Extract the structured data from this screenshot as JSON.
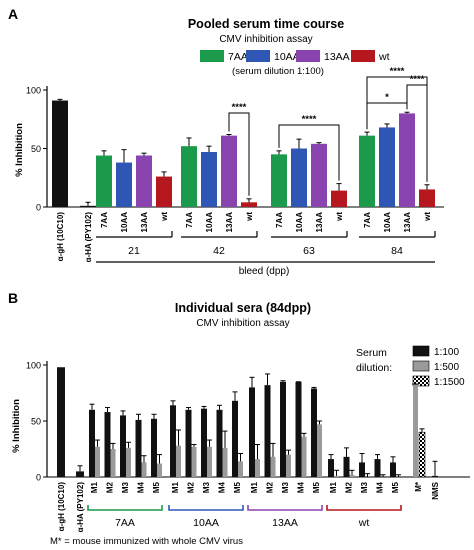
{
  "panel_a": {
    "letter": "A",
    "title": "Pooled serum time course",
    "subtitle": "CMV inhibition assay",
    "legend_note": "(serum dilution 1:100)",
    "ylabel": "% Inhibition",
    "group_label": "bleed (dpp)",
    "controls": [
      "α-gH (10C10)",
      "α-HA (PY102)"
    ],
    "significance": [
      "****",
      "****",
      "****",
      "*",
      "****"
    ]
  },
  "panel_b": {
    "letter": "B",
    "title": "Individual sera (84dpp)",
    "subtitle": "CMV inhibition assay",
    "legend_title": "Serum dilution:",
    "legend_title_line1": "Serum",
    "legend_title_line2": "dilution:",
    "ylabel": "% Inhibition",
    "footnote": "M* = mouse immunized with whole CMV virus"
  },
  "colors": {
    "7AA": "#1a9a4a",
    "10AA": "#2f56b4",
    "13AA": "#8a44b0",
    "wt": "#b5171e",
    "control": "#111111",
    "d100": "#111111",
    "d500": "#9a9a9a"
  },
  "chart_data": [
    {
      "type": "bar",
      "title": "Pooled serum time course",
      "subtitle": "CMV inhibition assay",
      "ylabel": "% Inhibition",
      "xlabel": "bleed (dpp)",
      "ylim": [
        0,
        100
      ],
      "yticks": [
        0,
        50,
        100
      ],
      "legend": [
        "7AA",
        "10AA",
        "13AA",
        "wt"
      ],
      "legend_position": "top",
      "controls": [
        {
          "label": "α-gH (10C10)",
          "value": 91,
          "err": 1
        },
        {
          "label": "α-HA (PY102)",
          "value": 1,
          "err": 3
        }
      ],
      "timepoints": [
        "21",
        "42",
        "63",
        "84"
      ],
      "series_labels": [
        "7AA",
        "10AA",
        "13AA",
        "wt"
      ],
      "values": [
        [
          44,
          38,
          44,
          26
        ],
        [
          52,
          47,
          61,
          4
        ],
        [
          45,
          50,
          54,
          14
        ],
        [
          61,
          68,
          80,
          15
        ]
      ],
      "errors": [
        [
          4,
          11,
          2,
          4
        ],
        [
          7,
          5,
          1,
          3
        ],
        [
          3,
          8,
          1,
          6
        ],
        [
          3,
          3,
          1,
          4
        ]
      ]
    },
    {
      "type": "bar",
      "title": "Individual sera (84dpp)",
      "subtitle": "CMV inhibition assay",
      "ylabel": "% Inhibition",
      "ylim": [
        0,
        100
      ],
      "yticks": [
        0,
        50,
        100
      ],
      "legend_title": "Serum dilution:",
      "legend_position": "top-right",
      "dilutions": [
        "1:100",
        "1:500",
        "1:1500"
      ],
      "controls": [
        {
          "label": "α-gH (10C10)",
          "value": 98
        },
        {
          "label": "α-HA (PY102)",
          "value": 5,
          "err": 5
        }
      ],
      "groups": [
        {
          "name": "7AA",
          "mice": [
            "M1",
            "M2",
            "M3",
            "M4",
            "M5"
          ],
          "d100": [
            60,
            58,
            55,
            51,
            52
          ],
          "d500": [
            27,
            25,
            26,
            13,
            12
          ],
          "err100": [
            5,
            4,
            4,
            5,
            4
          ],
          "err500": [
            6,
            5,
            5,
            6,
            8
          ]
        },
        {
          "name": "10AA",
          "mice": [
            "M1",
            "M2",
            "M3",
            "M4",
            "M5"
          ],
          "d100": [
            64,
            60,
            61,
            60,
            68
          ],
          "d500": [
            28,
            27,
            27,
            26,
            14
          ],
          "err100": [
            4,
            2,
            2,
            4,
            8
          ],
          "err500": [
            14,
            2,
            6,
            15,
            7
          ]
        },
        {
          "name": "13AA",
          "mice": [
            "M1",
            "M2",
            "M3",
            "M4",
            "M5"
          ],
          "d100": [
            80,
            82,
            85,
            85,
            79
          ],
          "d500": [
            16,
            18,
            20,
            36,
            47
          ],
          "err100": [
            9,
            10,
            1,
            0,
            1
          ],
          "err500": [
            13,
            12,
            4,
            3,
            3
          ]
        },
        {
          "name": "wt",
          "mice": [
            "M1",
            "M2",
            "M3",
            "M4",
            "M5"
          ],
          "d100": [
            16,
            18,
            13,
            16,
            13
          ],
          "d500": [
            1,
            2,
            0,
            0,
            0
          ],
          "err100": [
            4,
            8,
            8,
            4,
            5
          ],
          "err500": [
            5,
            4,
            3,
            2,
            2
          ]
        }
      ],
      "m_star": {
        "label": "M*",
        "d500": 83,
        "d1500": 40,
        "err1500": 3
      },
      "nms": {
        "label": "NMS",
        "value": 1,
        "err": 13
      }
    }
  ]
}
